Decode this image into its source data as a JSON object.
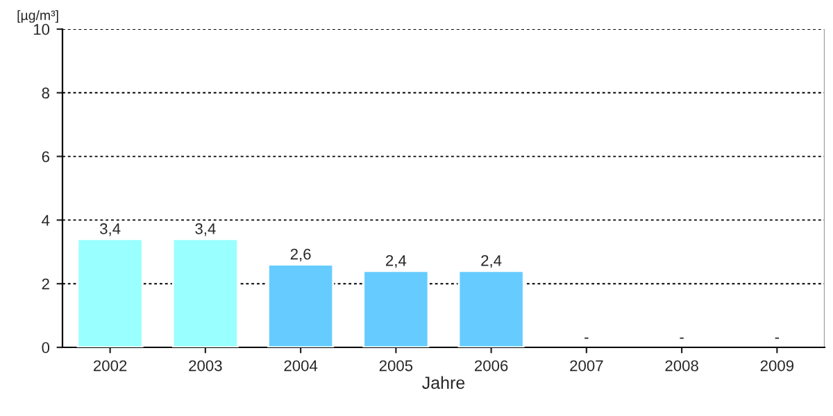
{
  "chart_data": {
    "type": "bar",
    "ylabel": "[µg/m³]",
    "xlabel": "Jahre",
    "categories": [
      "2002",
      "2003",
      "2004",
      "2005",
      "2006",
      "2007",
      "2008",
      "2009"
    ],
    "values": [
      3.4,
      3.4,
      2.6,
      2.4,
      2.4,
      null,
      null,
      null
    ],
    "colors": [
      "#99ffff",
      "#99ffff",
      "#66ccff",
      "#66ccff",
      "#66ccff",
      "#66ccff",
      "#66ccff",
      "#66ccff"
    ],
    "value_labels": [
      "3,4",
      "3,4",
      "2,6",
      "2,4",
      "2,4",
      "-",
      "-",
      "-"
    ],
    "ylim": [
      0,
      10
    ],
    "yticks": [
      0,
      2,
      4,
      6,
      8,
      10
    ],
    "grid": "y"
  }
}
